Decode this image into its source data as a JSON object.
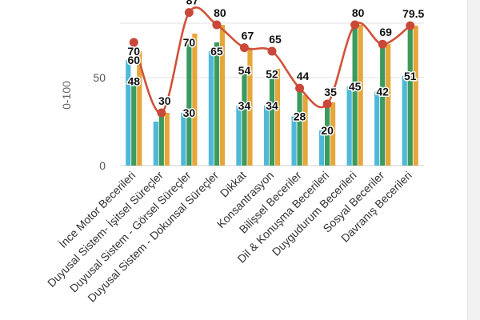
{
  "chart_data": {
    "type": "bar",
    "ylabel": "0-100",
    "ylim": [
      0,
      80
    ],
    "y_ticks": [
      0,
      50
    ],
    "grid": true,
    "categories": [
      "İnce Motor Becerileri",
      "Duyusal Sistem- İşitsel Süreçler",
      "Duyusal Sistem - Görsel Süreçler",
      "Duyusal Sistem - Dokunsal Süreçler",
      "Dikkat",
      "Konsantrasyon",
      "Bilişsel Beceriler",
      "Dil & Konuşma Becerileri",
      "Duygudurum Becerileri",
      "Sosyal Beceriler",
      "Davranış Becerileri"
    ],
    "series": [
      {
        "type": "bar",
        "color": "#4fb8d8",
        "values": [
          60,
          25,
          30,
          65,
          34,
          34,
          28,
          20,
          45,
          42,
          51
        ],
        "labels": [
          "60",
          "",
          "30",
          "65",
          "34",
          "34",
          "28",
          "20",
          "45",
          "42",
          "51"
        ]
      },
      {
        "type": "bar",
        "color": "#3c9a5c",
        "values": [
          48,
          30,
          70,
          70,
          54,
          52,
          44,
          35,
          80,
          69,
          79.5
        ],
        "labels": [
          "48",
          "",
          "70",
          "",
          "54",
          "52",
          "",
          "",
          "",
          "",
          ""
        ]
      },
      {
        "type": "bar",
        "color": "#e5a63a",
        "values": [
          65,
          30,
          75,
          80,
          67,
          55,
          40,
          36,
          80,
          69,
          79.5
        ],
        "labels": [
          "70",
          "",
          "",
          "",
          "",
          "",
          "",
          "",
          "",
          "",
          ""
        ]
      },
      {
        "type": "line",
        "color": "#d0523a",
        "marker_color": "#c9483a",
        "values": [
          70,
          30,
          87,
          80,
          67,
          65,
          44,
          35,
          80,
          69,
          79.5
        ],
        "labels": [
          "",
          "30",
          "87",
          "80",
          "67",
          "65",
          "44",
          "35",
          "80",
          "69",
          "79.5"
        ]
      }
    ]
  }
}
